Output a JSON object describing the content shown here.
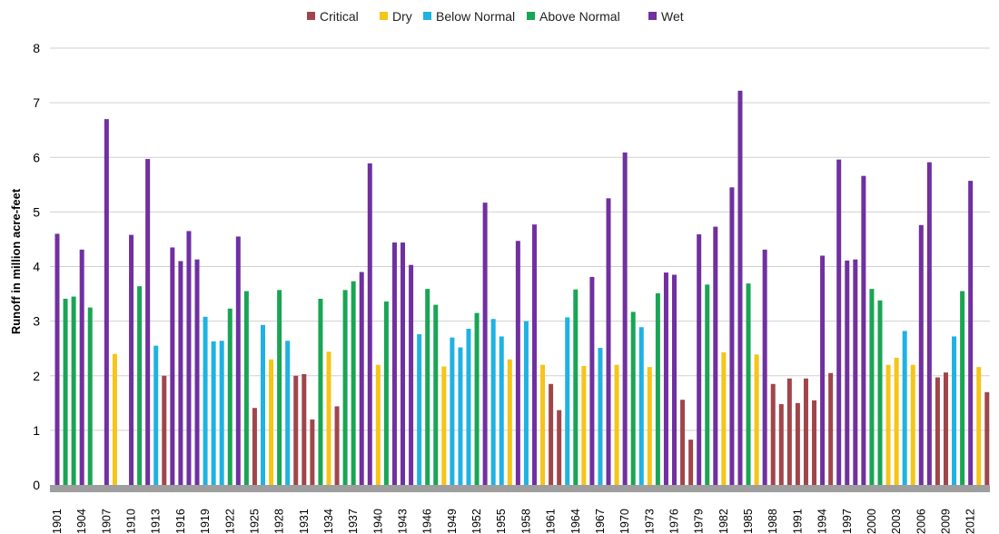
{
  "chart_data": {
    "type": "bar",
    "ylabel": "Runoff in million acre-feet",
    "xlabel": "",
    "ylim": [
      0,
      8
    ],
    "yticks": [
      0,
      1,
      2,
      3,
      4,
      5,
      6,
      7,
      8
    ],
    "grid": true,
    "legend_position": "top-center",
    "categories_shown": [
      "1901",
      "1904",
      "1907",
      "1910",
      "1913",
      "1916",
      "1919",
      "1922",
      "1925",
      "1928",
      "1931",
      "1934",
      "1937",
      "1940",
      "1943",
      "1946",
      "1949",
      "1952",
      "1955",
      "1958",
      "1961",
      "1964",
      "1967",
      "1970",
      "1973",
      "1976",
      "1979",
      "1982",
      "1985",
      "1988",
      "1991",
      "1994",
      "1997",
      "2000",
      "2003",
      "2006",
      "2009",
      "2012"
    ],
    "classes": [
      {
        "key": "C",
        "name": "Critical",
        "color": "#a0464b"
      },
      {
        "key": "D",
        "name": "Dry",
        "color": "#f5c518"
      },
      {
        "key": "BN",
        "name": "Below Normal",
        "color": "#1fb2e3"
      },
      {
        "key": "AN",
        "name": "Above Normal",
        "color": "#1aa555"
      },
      {
        "key": "W",
        "name": "Wet",
        "color": "#7030a0"
      }
    ],
    "years": [
      1901,
      1902,
      1903,
      1904,
      1905,
      1906,
      1907,
      1908,
      1909,
      1910,
      1911,
      1912,
      1913,
      1914,
      1915,
      1916,
      1917,
      1918,
      1919,
      1920,
      1921,
      1922,
      1923,
      1924,
      1925,
      1926,
      1927,
      1928,
      1929,
      1930,
      1931,
      1932,
      1933,
      1934,
      1935,
      1936,
      1937,
      1938,
      1939,
      1940,
      1941,
      1942,
      1943,
      1944,
      1945,
      1946,
      1947,
      1948,
      1949,
      1950,
      1951,
      1952,
      1953,
      1954,
      1955,
      1956,
      1957,
      1958,
      1959,
      1960,
      1961,
      1962,
      1963,
      1964,
      1965,
      1966,
      1967,
      1968,
      1969,
      1970,
      1971,
      1972,
      1973,
      1974,
      1975,
      1976,
      1977,
      1978,
      1979,
      1980,
      1981,
      1982,
      1983,
      1984,
      1985,
      1986,
      1987,
      1988,
      1989,
      1990,
      1991,
      1992,
      1993,
      1994,
      1995,
      1996,
      1997,
      1998,
      1999,
      2000,
      2001,
      2002,
      2003,
      2004,
      2005,
      2006,
      2007,
      2008,
      2009,
      2010,
      2011,
      2012,
      2013,
      2014
    ],
    "values": [
      4.6,
      3.41,
      3.45,
      4.31,
      3.25,
      0,
      6.7,
      2.4,
      0,
      4.58,
      3.64,
      5.97,
      2.55,
      2.0,
      4.35,
      4.1,
      4.65,
      4.13,
      3.08,
      2.63,
      2.64,
      3.23,
      4.55,
      3.55,
      1.41,
      2.93,
      2.3,
      3.57,
      2.64,
      2.0,
      2.03,
      1.2,
      3.41,
      2.44,
      1.44,
      3.57,
      3.73,
      3.9,
      5.89,
      2.2,
      3.36,
      4.44,
      4.44,
      4.03,
      2.76,
      3.59,
      3.3,
      2.17,
      2.7,
      2.52,
      2.86,
      3.15,
      5.17,
      3.04,
      2.72,
      2.3,
      4.47,
      3.0,
      4.77,
      2.2,
      1.85,
      1.37,
      3.07,
      3.58,
      2.18,
      3.81,
      2.51,
      5.25,
      2.2,
      6.09,
      3.17,
      2.89,
      2.16,
      3.51,
      3.89,
      3.85,
      1.56,
      0.83,
      4.59,
      3.67,
      4.73,
      2.43,
      5.45,
      7.22,
      3.69,
      2.39,
      4.31,
      1.85,
      1.48,
      1.95,
      1.5,
      1.95,
      1.55,
      4.2,
      2.05,
      5.96,
      4.11,
      4.13,
      5.66,
      3.59,
      3.38,
      2.2,
      2.33,
      2.82,
      2.2,
      4.76,
      5.91,
      1.97,
      2.06,
      2.72,
      3.55,
      5.57,
      2.16,
      1.7
    ],
    "classification": [
      "W",
      "AN",
      "AN",
      "W",
      "AN",
      "AN",
      "W",
      "D",
      "W",
      "W",
      "AN",
      "W",
      "BN",
      "C",
      "W",
      "W",
      "W",
      "W",
      "BN",
      "BN",
      "BN",
      "AN",
      "W",
      "AN",
      "C",
      "BN",
      "D",
      "AN",
      "BN",
      "C",
      "C",
      "C",
      "AN",
      "D",
      "C",
      "AN",
      "AN",
      "W",
      "W",
      "D",
      "AN",
      "W",
      "W",
      "W",
      "BN",
      "AN",
      "AN",
      "D",
      "BN",
      "BN",
      "BN",
      "AN",
      "W",
      "BN",
      "BN",
      "D",
      "W",
      "BN",
      "W",
      "D",
      "C",
      "C",
      "BN",
      "AN",
      "D",
      "W",
      "BN",
      "W",
      "D",
      "W",
      "AN",
      "BN",
      "D",
      "AN",
      "W",
      "W",
      "C",
      "C",
      "W",
      "AN",
      "W",
      "D",
      "W",
      "W",
      "AN",
      "D",
      "W",
      "C",
      "C",
      "C",
      "C",
      "C",
      "C",
      "W",
      "C",
      "W",
      "W",
      "W",
      "W",
      "AN",
      "AN",
      "D",
      "D",
      "BN",
      "D",
      "W",
      "W",
      "C",
      "C",
      "BN",
      "AN",
      "W",
      "D",
      "C"
    ]
  }
}
